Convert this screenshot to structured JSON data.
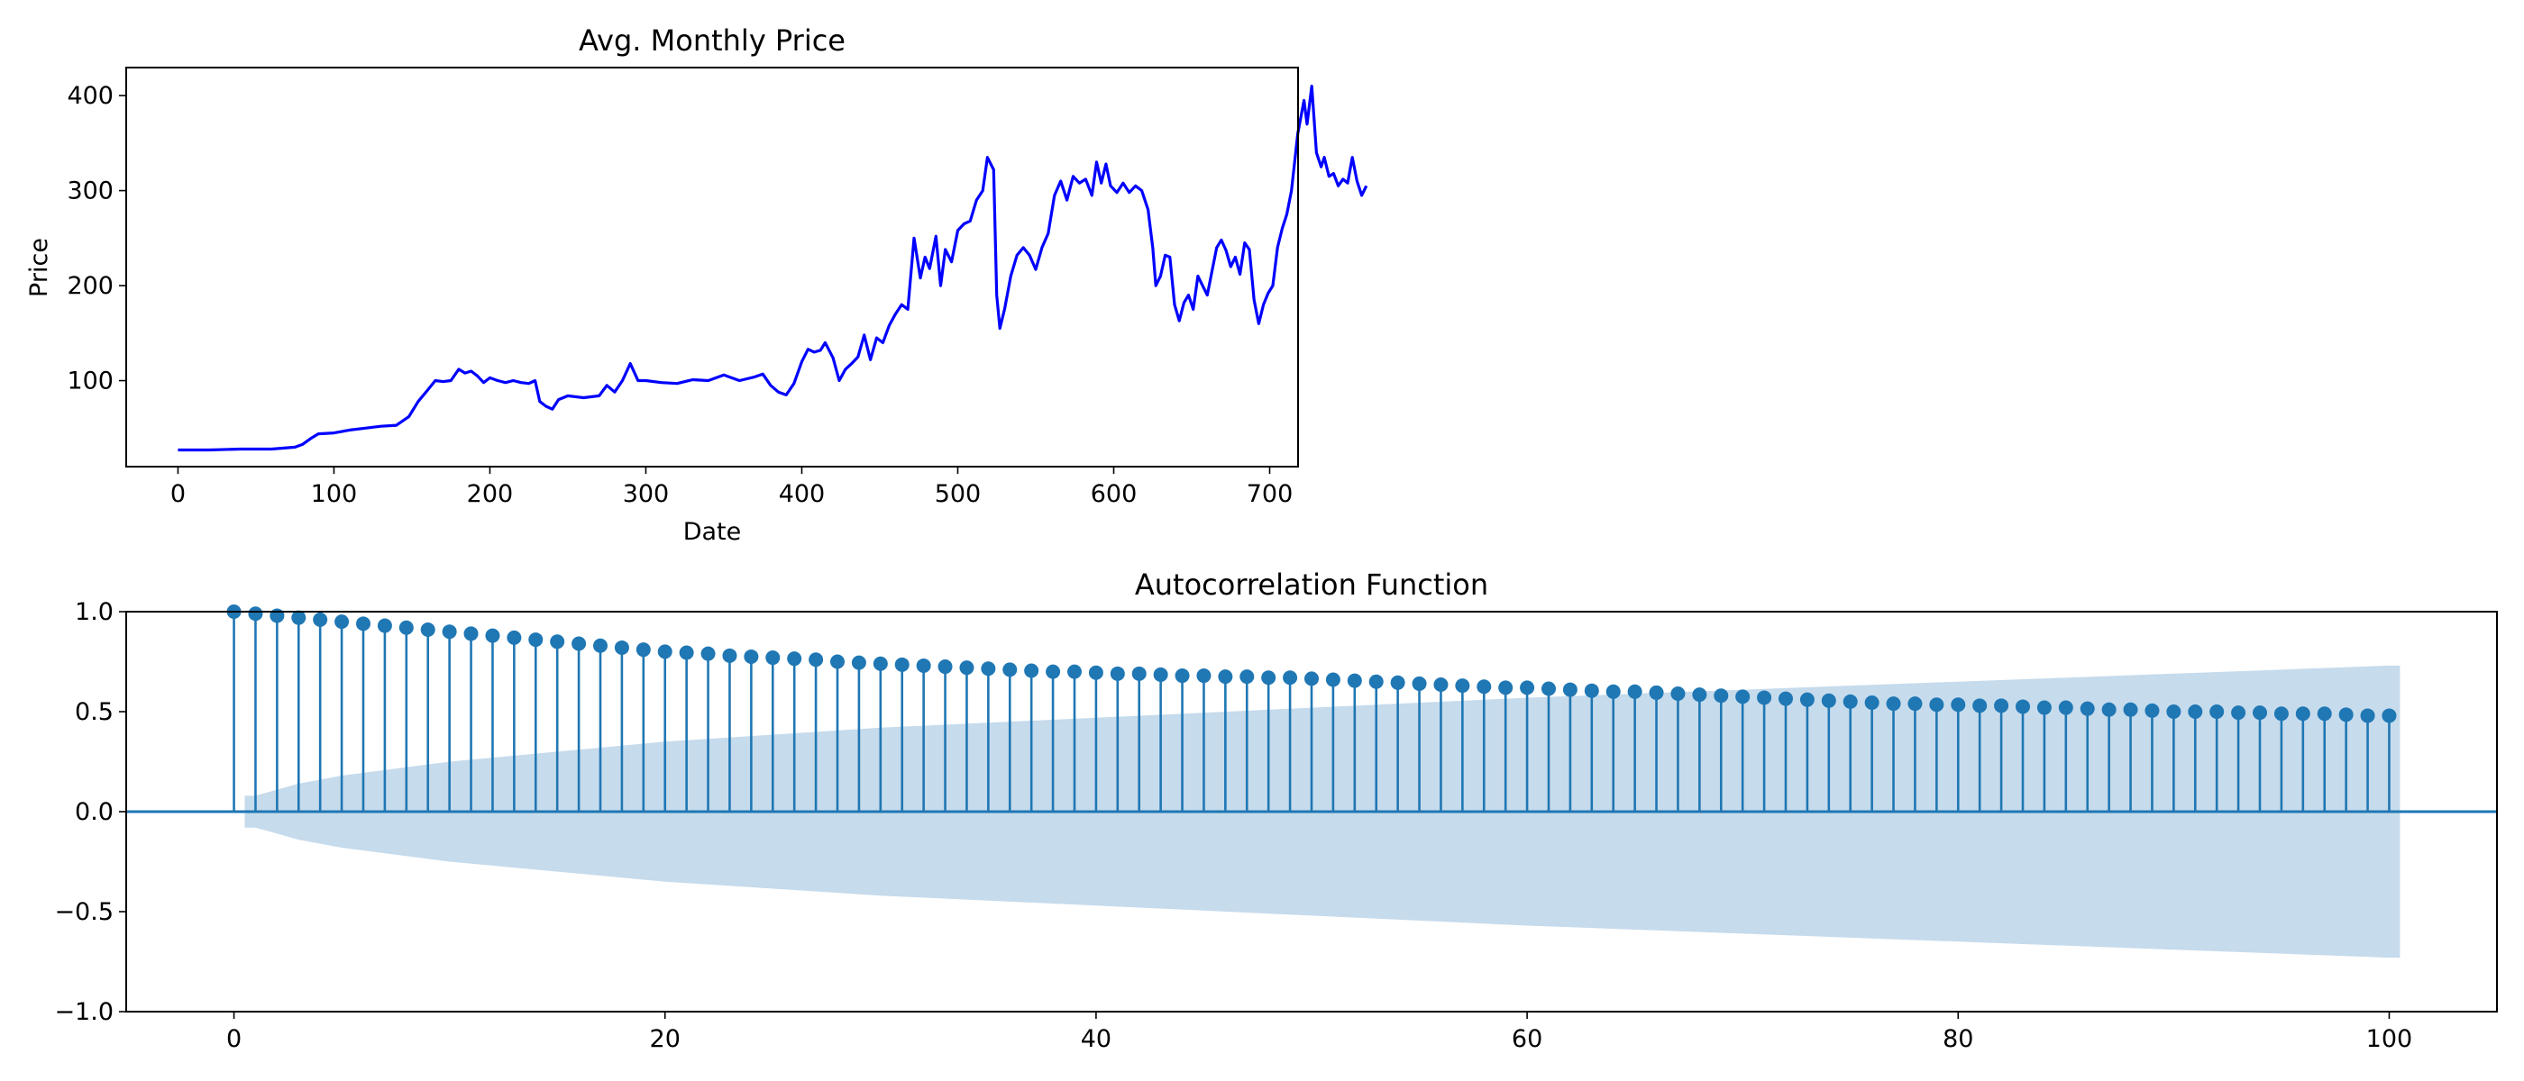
{
  "colors": {
    "price_line": "#0000ff",
    "acf_stem": "#1f77b4",
    "confidence_band": "#c6dbec",
    "axis": "#000000"
  },
  "chart_data": [
    {
      "type": "line",
      "title": "Avg. Monthly Price",
      "xlabel": "Date",
      "ylabel": "Price",
      "xlim": [
        -33.2,
        718.2
      ],
      "ylim": [
        9.5,
        429.5
      ],
      "xticks": [
        0,
        100,
        200,
        300,
        400,
        500,
        600,
        700
      ],
      "yticks": [
        100,
        200,
        300,
        400
      ],
      "grid": false,
      "series": [
        {
          "points": [
            [
              0,
              27
            ],
            [
              20,
              27
            ],
            [
              40,
              28
            ],
            [
              60,
              28
            ],
            [
              75,
              30
            ],
            [
              80,
              33
            ],
            [
              85,
              39
            ],
            [
              90,
              44
            ],
            [
              100,
              45
            ],
            [
              110,
              48
            ],
            [
              120,
              50
            ],
            [
              130,
              52
            ],
            [
              140,
              53
            ],
            [
              148,
              62
            ],
            [
              154,
              78
            ],
            [
              160,
              90
            ],
            [
              165,
              100
            ],
            [
              170,
              99
            ],
            [
              175,
              100
            ],
            [
              180,
              112
            ],
            [
              184,
              108
            ],
            [
              188,
              110
            ],
            [
              192,
              105
            ],
            [
              196,
              98
            ],
            [
              200,
              103
            ],
            [
              205,
              100
            ],
            [
              210,
              98
            ],
            [
              215,
              100
            ],
            [
              220,
              98
            ],
            [
              225,
              97
            ],
            [
              229,
              100
            ],
            [
              232,
              78
            ],
            [
              236,
              73
            ],
            [
              240,
              70
            ],
            [
              244,
              80
            ],
            [
              250,
              84
            ],
            [
              260,
              82
            ],
            [
              270,
              84
            ],
            [
              275,
              95
            ],
            [
              280,
              88
            ],
            [
              285,
              100
            ],
            [
              290,
              118
            ],
            [
              295,
              100
            ],
            [
              300,
              100
            ],
            [
              310,
              98
            ],
            [
              320,
              97
            ],
            [
              330,
              101
            ],
            [
              340,
              100
            ],
            [
              350,
              106
            ],
            [
              360,
              100
            ],
            [
              370,
              104
            ],
            [
              375,
              107
            ],
            [
              380,
              95
            ],
            [
              385,
              88
            ],
            [
              390,
              85
            ],
            [
              395,
              97
            ],
            [
              400,
              120
            ],
            [
              404,
              133
            ],
            [
              408,
              130
            ],
            [
              412,
              132
            ],
            [
              415,
              140
            ],
            [
              420,
              124
            ],
            [
              424,
              100
            ],
            [
              428,
              112
            ],
            [
              432,
              118
            ],
            [
              436,
              125
            ],
            [
              440,
              148
            ],
            [
              444,
              122
            ],
            [
              448,
              145
            ],
            [
              452,
              140
            ],
            [
              456,
              158
            ],
            [
              460,
              170
            ],
            [
              464,
              180
            ],
            [
              468,
              175
            ],
            [
              472,
              250
            ],
            [
              476,
              208
            ],
            [
              479,
              230
            ],
            [
              482,
              218
            ],
            [
              486,
              252
            ],
            [
              489,
              200
            ],
            [
              492,
              238
            ],
            [
              496,
              225
            ],
            [
              500,
              258
            ],
            [
              504,
              265
            ],
            [
              508,
              268
            ],
            [
              512,
              290
            ],
            [
              516,
              300
            ],
            [
              519,
              335
            ],
            [
              523,
              322
            ],
            [
              525,
              190
            ],
            [
              527,
              155
            ],
            [
              530,
              175
            ],
            [
              534,
              210
            ],
            [
              538,
              232
            ],
            [
              542,
              240
            ],
            [
              546,
              232
            ],
            [
              550,
              217
            ],
            [
              554,
              240
            ],
            [
              558,
              255
            ],
            [
              562,
              295
            ],
            [
              566,
              310
            ],
            [
              570,
              290
            ],
            [
              574,
              315
            ],
            [
              578,
              308
            ],
            [
              582,
              312
            ],
            [
              586,
              295
            ],
            [
              589,
              330
            ],
            [
              592,
              308
            ],
            [
              595,
              328
            ],
            [
              598,
              305
            ],
            [
              602,
              298
            ],
            [
              606,
              308
            ],
            [
              610,
              298
            ],
            [
              614,
              305
            ],
            [
              618,
              300
            ],
            [
              622,
              280
            ],
            [
              625,
              240
            ],
            [
              627,
              200
            ],
            [
              630,
              210
            ],
            [
              633,
              232
            ],
            [
              636,
              230
            ],
            [
              639,
              180
            ],
            [
              642,
              163
            ],
            [
              645,
              182
            ],
            [
              648,
              190
            ],
            [
              651,
              175
            ],
            [
              654,
              210
            ],
            [
              657,
              200
            ],
            [
              660,
              190
            ],
            [
              663,
              215
            ],
            [
              666,
              240
            ],
            [
              669,
              248
            ],
            [
              672,
              237
            ],
            [
              675,
              220
            ],
            [
              678,
              230
            ],
            [
              681,
              212
            ],
            [
              684,
              245
            ],
            [
              687,
              238
            ],
            [
              690,
              185
            ],
            [
              693,
              160
            ],
            [
              696,
              180
            ],
            [
              699,
              192
            ],
            [
              702,
              200
            ],
            [
              705,
              240
            ],
            [
              708,
              260
            ],
            [
              711,
              275
            ],
            [
              714,
              300
            ],
            [
              718,
              360
            ],
            [
              722,
              395
            ],
            [
              724,
              370
            ],
            [
              727,
              410
            ],
            [
              730,
              340
            ],
            [
              733,
              325
            ],
            [
              735,
              335
            ],
            [
              738,
              315
            ],
            [
              741,
              318
            ],
            [
              744,
              305
            ],
            [
              747,
              312
            ],
            [
              750,
              308
            ],
            [
              753,
              335
            ],
            [
              756,
              310
            ],
            [
              759,
              295
            ],
            [
              762,
              305
            ]
          ]
        }
      ]
    },
    {
      "type": "stem",
      "title": "Autocorrelation Function",
      "xlabel": "",
      "ylabel": "",
      "xlim": [
        -5,
        105
      ],
      "ylim": [
        -1.0,
        1.0
      ],
      "xticks": [
        0,
        20,
        40,
        60,
        80,
        100
      ],
      "yticks": [
        -1.0,
        -0.5,
        0.0,
        0.5,
        1.0
      ],
      "ytick_labels": [
        "−1.0",
        "−0.5",
        "0.0",
        "0.5",
        "1.0"
      ],
      "grid": false,
      "lags": [
        0,
        1,
        2,
        3,
        4,
        5,
        6,
        7,
        8,
        9,
        10,
        11,
        12,
        13,
        14,
        15,
        16,
        17,
        18,
        19,
        20,
        21,
        22,
        23,
        24,
        25,
        26,
        27,
        28,
        29,
        30,
        31,
        32,
        33,
        34,
        35,
        36,
        37,
        38,
        39,
        40,
        41,
        42,
        43,
        44,
        45,
        46,
        47,
        48,
        49,
        50,
        51,
        52,
        53,
        54,
        55,
        56,
        57,
        58,
        59,
        60,
        61,
        62,
        63,
        64,
        65,
        66,
        67,
        68,
        69,
        70,
        71,
        72,
        73,
        74,
        75,
        76,
        77,
        78,
        79,
        80,
        81,
        82,
        83,
        84,
        85,
        86,
        87,
        88,
        89,
        90,
        91,
        92,
        93,
        94,
        95,
        96,
        97,
        98,
        99,
        100
      ],
      "values": [
        1.0,
        0.99,
        0.98,
        0.97,
        0.96,
        0.95,
        0.94,
        0.93,
        0.92,
        0.91,
        0.9,
        0.89,
        0.88,
        0.87,
        0.86,
        0.85,
        0.84,
        0.83,
        0.82,
        0.81,
        0.8,
        0.795,
        0.79,
        0.78,
        0.775,
        0.77,
        0.765,
        0.76,
        0.75,
        0.745,
        0.74,
        0.735,
        0.73,
        0.725,
        0.72,
        0.715,
        0.71,
        0.705,
        0.7,
        0.7,
        0.695,
        0.69,
        0.69,
        0.685,
        0.68,
        0.68,
        0.675,
        0.675,
        0.67,
        0.67,
        0.665,
        0.66,
        0.655,
        0.65,
        0.645,
        0.64,
        0.635,
        0.63,
        0.625,
        0.62,
        0.62,
        0.615,
        0.61,
        0.605,
        0.6,
        0.6,
        0.595,
        0.59,
        0.585,
        0.58,
        0.575,
        0.57,
        0.565,
        0.56,
        0.555,
        0.55,
        0.545,
        0.54,
        0.54,
        0.535,
        0.535,
        0.53,
        0.53,
        0.525,
        0.52,
        0.52,
        0.515,
        0.51,
        0.51,
        0.505,
        0.5,
        0.5,
        0.5,
        0.495,
        0.495,
        0.49,
        0.49,
        0.49,
        0.485,
        0.48,
        0.48
      ],
      "confidence_band": {
        "lags": [
          1,
          2,
          3,
          5,
          10,
          20,
          30,
          40,
          50,
          60,
          70,
          80,
          90,
          100
        ],
        "upper": [
          0.08,
          0.11,
          0.14,
          0.18,
          0.25,
          0.35,
          0.42,
          0.47,
          0.52,
          0.57,
          0.61,
          0.65,
          0.69,
          0.73
        ]
      }
    }
  ]
}
